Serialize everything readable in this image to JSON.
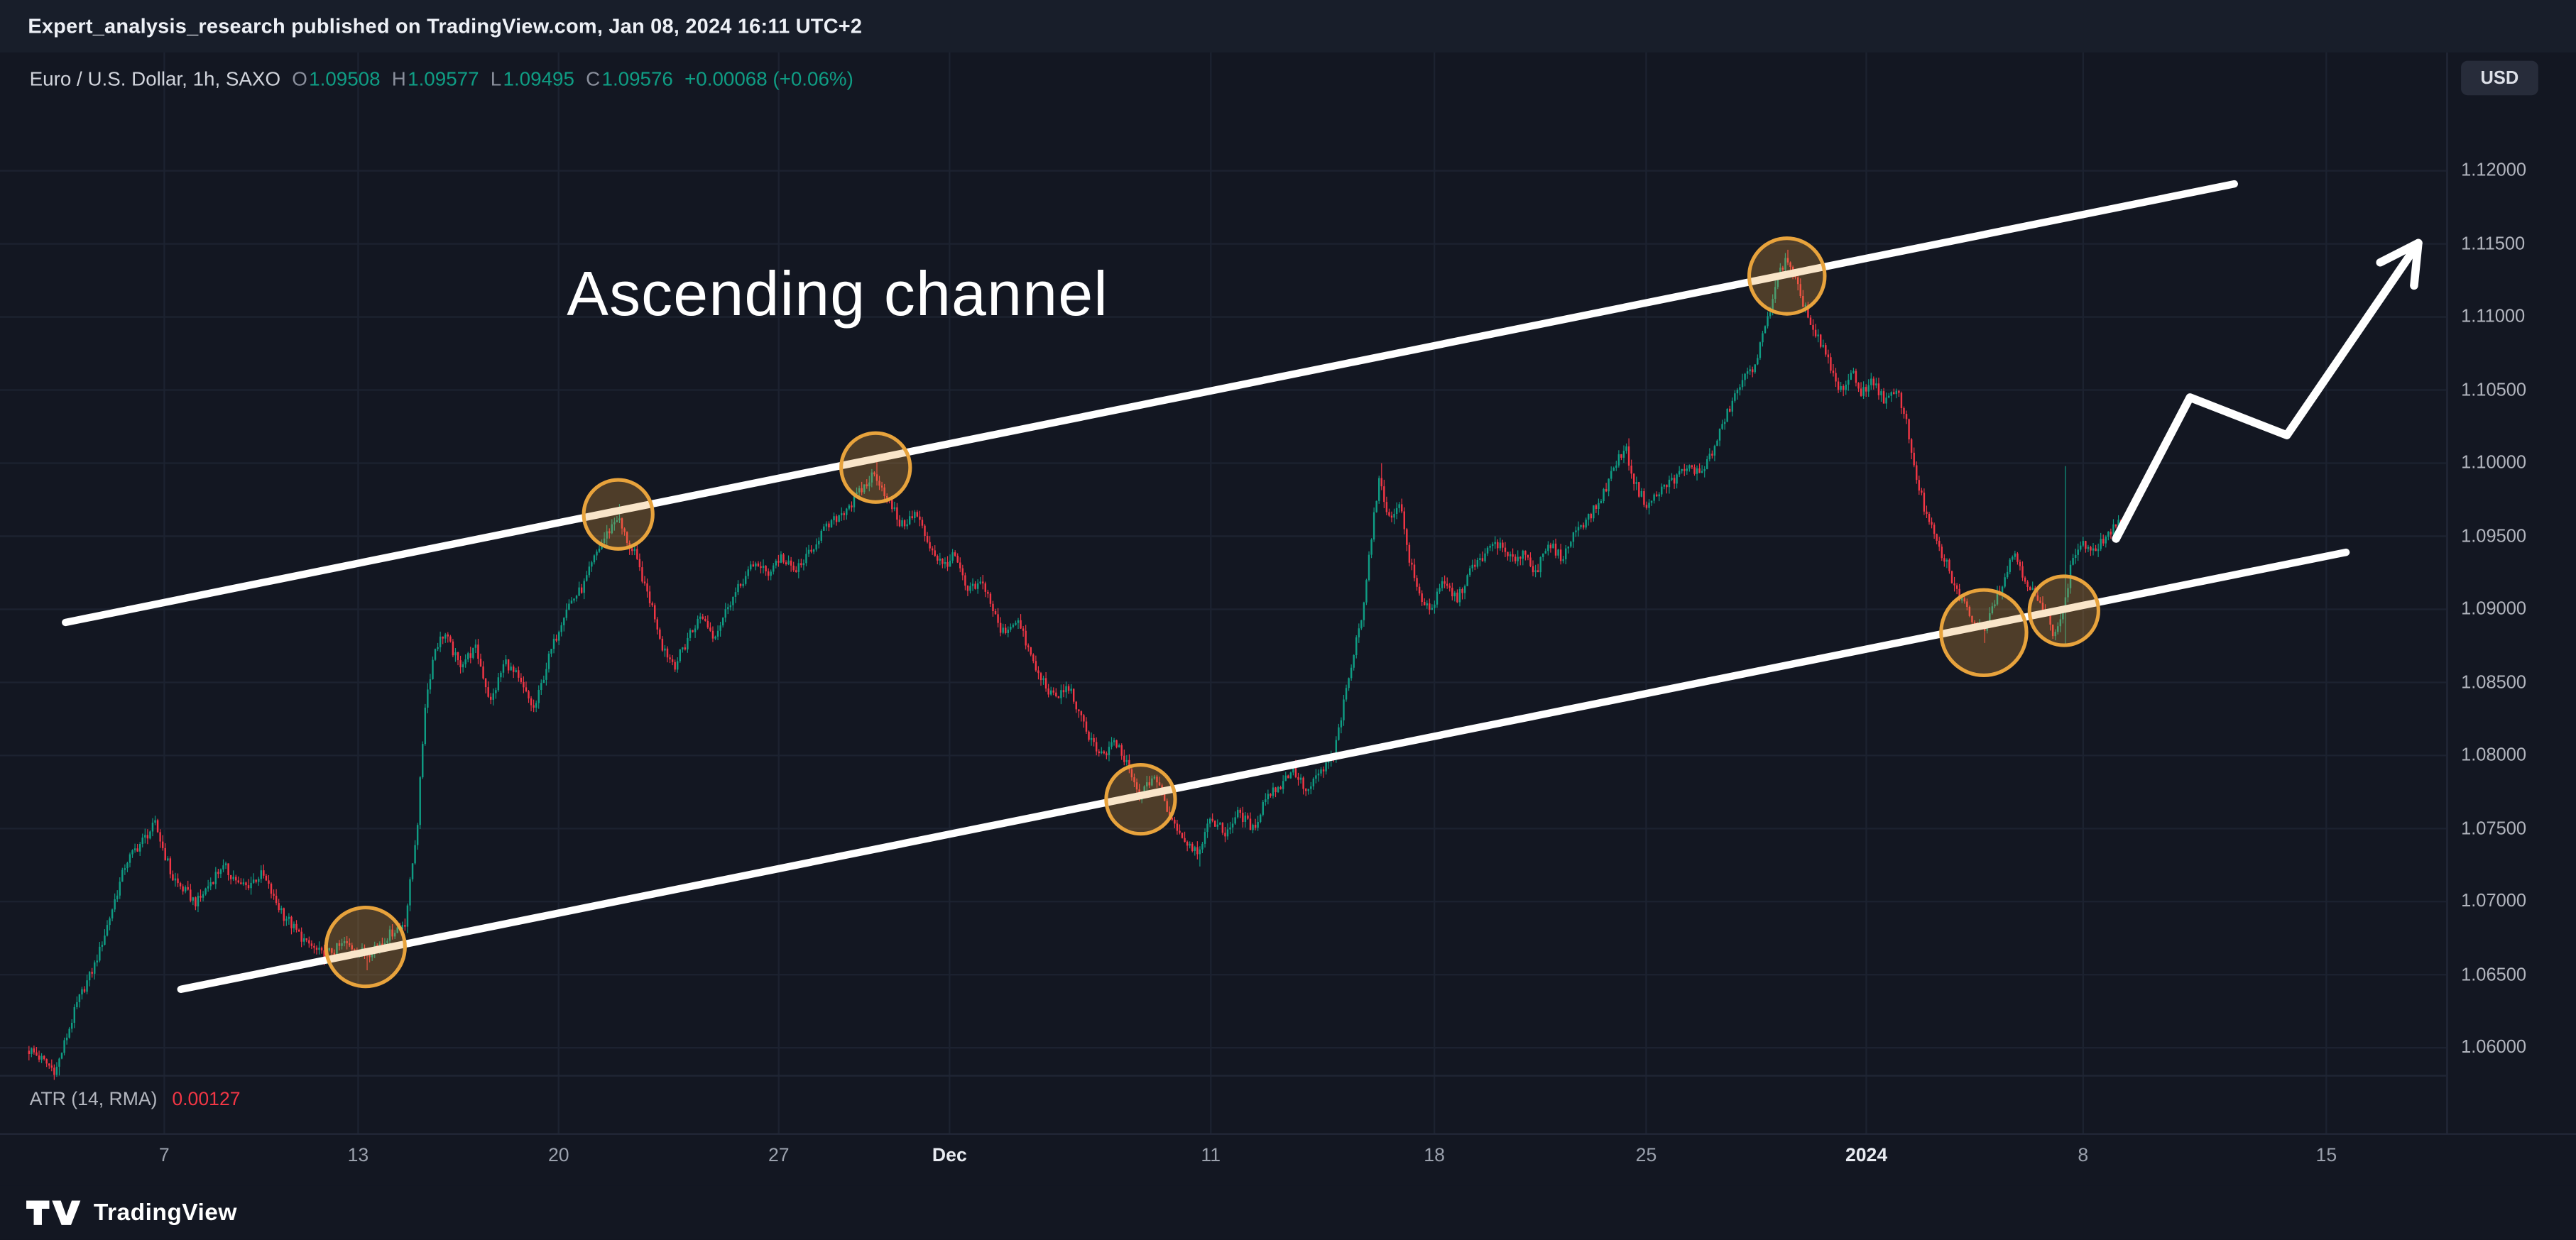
{
  "publish_bar": {
    "text": "Expert_analysis_research published on TradingView.com, Jan 08, 2024 16:11 UTC+2"
  },
  "legend": {
    "symbol": "Euro / U.S. Dollar, 1h, SAXO",
    "ohlc": [
      {
        "label": "O",
        "value": "1.09508"
      },
      {
        "label": "H",
        "value": "1.09577"
      },
      {
        "label": "L",
        "value": "1.09495"
      },
      {
        "label": "C",
        "value": "1.09576"
      }
    ],
    "change": "+0.00068 (+0.06%)"
  },
  "annotation": {
    "text": "Ascending channel"
  },
  "indicator": {
    "label": "ATR (14, RMA)",
    "value": "0.00127"
  },
  "price_axis": {
    "currency_button": "USD",
    "ticks": [
      {
        "label": "1.12000",
        "price": 1.12
      },
      {
        "label": "1.11500",
        "price": 1.115
      },
      {
        "label": "1.11000",
        "price": 1.11
      },
      {
        "label": "1.10500",
        "price": 1.105
      },
      {
        "label": "1.10000",
        "price": 1.1
      },
      {
        "label": "1.09500",
        "price": 1.095
      },
      {
        "label": "1.09000",
        "price": 1.09
      },
      {
        "label": "1.08500",
        "price": 1.085
      },
      {
        "label": "1.08000",
        "price": 1.08
      },
      {
        "label": "1.07500",
        "price": 1.075
      },
      {
        "label": "1.07000",
        "price": 1.07
      },
      {
        "label": "1.06500",
        "price": 1.065
      },
      {
        "label": "1.06000",
        "price": 1.06
      }
    ]
  },
  "time_axis": {
    "ticks": [
      {
        "label": "7",
        "t": 0.0622,
        "major": false
      },
      {
        "label": "13",
        "t": 0.142,
        "major": false
      },
      {
        "label": "20",
        "t": 0.2245,
        "major": false
      },
      {
        "label": "27",
        "t": 0.3151,
        "major": false
      },
      {
        "label": "Dec",
        "t": 0.3854,
        "major": true
      },
      {
        "label": "11",
        "t": 0.4929,
        "major": false
      },
      {
        "label": "18",
        "t": 0.5849,
        "major": false
      },
      {
        "label": "25",
        "t": 0.6721,
        "major": false
      },
      {
        "label": "2024",
        "t": 0.7627,
        "major": true
      },
      {
        "label": "8",
        "t": 0.8519,
        "major": false
      },
      {
        "label": "15",
        "t": 0.952,
        "major": false
      }
    ]
  },
  "footer": {
    "brand": "TradingView"
  },
  "colors": {
    "background": "#131722",
    "publish_bar_bg": "#181e2a",
    "grid": "#1c2230",
    "up": "#0f9d84",
    "down": "#f23645",
    "channel": "#ffffff",
    "circle_stroke": "#e8a33c",
    "circle_fill": "rgba(232,163,60,0.28)",
    "axis_text": "#b2b5be",
    "text": "#d1d4dc",
    "muted": "#787b86",
    "atr_value": "#f23645",
    "arrow": "#ffffff"
  },
  "chart_data": {
    "type": "candlestick",
    "title": "Euro / U.S. Dollar, 1h, SAXO",
    "timeframe": "1h",
    "current": {
      "open": 1.09508,
      "high": 1.09577,
      "low": 1.09495,
      "close": 1.09576,
      "change": "+0.00068",
      "change_pct": "+0.06%"
    },
    "y_ticks": [
      1.06,
      1.065,
      1.07,
      1.075,
      1.08,
      1.085,
      1.09,
      1.095,
      1.1,
      1.105,
      1.11,
      1.115,
      1.12
    ],
    "price_path": [
      [
        0.008,
        1.0598
      ],
      [
        0.018,
        1.0584
      ],
      [
        0.027,
        1.0631
      ],
      [
        0.035,
        1.066
      ],
      [
        0.047,
        1.0727
      ],
      [
        0.059,
        1.0753
      ],
      [
        0.066,
        1.0716
      ],
      [
        0.076,
        1.0699
      ],
      [
        0.086,
        1.0724
      ],
      [
        0.096,
        1.071
      ],
      [
        0.103,
        1.0719
      ],
      [
        0.111,
        1.0692
      ],
      [
        0.12,
        1.0674
      ],
      [
        0.128,
        1.0663
      ],
      [
        0.137,
        1.0671
      ],
      [
        0.145,
        1.0665
      ],
      [
        0.153,
        1.0674
      ],
      [
        0.162,
        1.0687
      ],
      [
        0.167,
        1.0755
      ],
      [
        0.17,
        1.0834
      ],
      [
        0.174,
        1.0873
      ],
      [
        0.178,
        1.0884
      ],
      [
        0.184,
        1.0862
      ],
      [
        0.191,
        1.0873
      ],
      [
        0.197,
        1.0836
      ],
      [
        0.203,
        1.0865
      ],
      [
        0.21,
        1.0847
      ],
      [
        0.215,
        1.0831
      ],
      [
        0.221,
        1.0867
      ],
      [
        0.228,
        1.0901
      ],
      [
        0.235,
        1.0915
      ],
      [
        0.241,
        1.094
      ],
      [
        0.246,
        1.0955
      ],
      [
        0.249,
        1.0963
      ],
      [
        0.254,
        1.0944
      ],
      [
        0.258,
        1.0929
      ],
      [
        0.264,
        1.0899
      ],
      [
        0.268,
        1.0873
      ],
      [
        0.273,
        1.0862
      ],
      [
        0.279,
        1.0884
      ],
      [
        0.284,
        1.0896
      ],
      [
        0.289,
        1.0881
      ],
      [
        0.295,
        1.0903
      ],
      [
        0.3,
        1.0917
      ],
      [
        0.306,
        1.0933
      ],
      [
        0.311,
        1.0924
      ],
      [
        0.316,
        1.0937
      ],
      [
        0.322,
        1.0926
      ],
      [
        0.327,
        1.0935
      ],
      [
        0.333,
        1.0952
      ],
      [
        0.338,
        1.096
      ],
      [
        0.343,
        1.0969
      ],
      [
        0.349,
        1.098
      ],
      [
        0.355,
        1.0994
      ],
      [
        0.361,
        1.0974
      ],
      [
        0.366,
        1.0957
      ],
      [
        0.372,
        1.0966
      ],
      [
        0.377,
        1.0946
      ],
      [
        0.383,
        1.0929
      ],
      [
        0.388,
        1.0937
      ],
      [
        0.393,
        1.0912
      ],
      [
        0.4,
        1.0918
      ],
      [
        0.407,
        1.0884
      ],
      [
        0.414,
        1.0892
      ],
      [
        0.422,
        1.0856
      ],
      [
        0.429,
        1.0839
      ],
      [
        0.435,
        1.0847
      ],
      [
        0.442,
        1.0817
      ],
      [
        0.449,
        1.0798
      ],
      [
        0.454,
        1.0809
      ],
      [
        0.46,
        1.0789
      ],
      [
        0.464,
        1.077
      ],
      [
        0.47,
        1.0787
      ],
      [
        0.476,
        1.0761
      ],
      [
        0.483,
        1.0741
      ],
      [
        0.488,
        1.0735
      ],
      [
        0.494,
        1.0757
      ],
      [
        0.499,
        1.0746
      ],
      [
        0.505,
        1.0761
      ],
      [
        0.511,
        1.0749
      ],
      [
        0.516,
        1.0772
      ],
      [
        0.522,
        1.078
      ],
      [
        0.527,
        1.0791
      ],
      [
        0.533,
        1.0775
      ],
      [
        0.538,
        1.0787
      ],
      [
        0.544,
        1.08
      ],
      [
        0.548,
        1.0834
      ],
      [
        0.552,
        1.0867
      ],
      [
        0.556,
        1.0901
      ],
      [
        0.56,
        1.0957
      ],
      [
        0.563,
        1.099
      ],
      [
        0.567,
        1.096
      ],
      [
        0.571,
        1.0975
      ],
      [
        0.575,
        1.0935
      ],
      [
        0.579,
        1.091
      ],
      [
        0.584,
        1.0899
      ],
      [
        0.589,
        1.0918
      ],
      [
        0.595,
        1.0907
      ],
      [
        0.6,
        1.0926
      ],
      [
        0.606,
        1.0937
      ],
      [
        0.611,
        1.0946
      ],
      [
        0.617,
        1.0933
      ],
      [
        0.622,
        1.094
      ],
      [
        0.627,
        1.0926
      ],
      [
        0.633,
        1.0944
      ],
      [
        0.638,
        1.0935
      ],
      [
        0.644,
        1.0955
      ],
      [
        0.649,
        1.0963
      ],
      [
        0.654,
        1.0975
      ],
      [
        0.66,
        1.1
      ],
      [
        0.664,
        1.1011
      ],
      [
        0.668,
        1.0985
      ],
      [
        0.673,
        1.0971
      ],
      [
        0.679,
        1.0982
      ],
      [
        0.684,
        1.0989
      ],
      [
        0.69,
        1.0997
      ],
      [
        0.695,
        1.0993
      ],
      [
        0.7,
        1.1008
      ],
      [
        0.706,
        1.1034
      ],
      [
        0.711,
        1.1053
      ],
      [
        0.717,
        1.1067
      ],
      [
        0.722,
        1.1094
      ],
      [
        0.726,
        1.1124
      ],
      [
        0.73,
        1.1139
      ],
      [
        0.734,
        1.1124
      ],
      [
        0.738,
        1.1106
      ],
      [
        0.742,
        1.1087
      ],
      [
        0.747,
        1.1072
      ],
      [
        0.752,
        1.1049
      ],
      [
        0.757,
        1.106
      ],
      [
        0.761,
        1.1049
      ],
      [
        0.766,
        1.1056
      ],
      [
        0.771,
        1.1042
      ],
      [
        0.776,
        1.1049
      ],
      [
        0.779,
        1.1034
      ],
      [
        0.783,
        1.0997
      ],
      [
        0.787,
        1.0969
      ],
      [
        0.792,
        1.0946
      ],
      [
        0.797,
        1.0926
      ],
      [
        0.801,
        1.091
      ],
      [
        0.806,
        1.0896
      ],
      [
        0.811,
        1.0885
      ],
      [
        0.815,
        1.0903
      ],
      [
        0.82,
        1.0921
      ],
      [
        0.824,
        1.094
      ],
      [
        0.828,
        1.0923
      ],
      [
        0.832,
        1.091
      ],
      [
        0.836,
        1.0899
      ],
      [
        0.84,
        1.0885
      ],
      [
        0.844,
        1.0896
      ],
      [
        0.848,
        1.0935
      ],
      [
        0.852,
        1.0946
      ],
      [
        0.856,
        1.0937
      ],
      [
        0.86,
        1.0946
      ],
      [
        0.863,
        1.0952
      ],
      [
        0.867,
        1.0958
      ]
    ],
    "wick_events": [
      {
        "t": 0.018,
        "low": 1.0581
      },
      {
        "t": 0.145,
        "low": 1.0653
      },
      {
        "t": 0.249,
        "high": 1.0972
      },
      {
        "t": 0.355,
        "high": 1.1004
      },
      {
        "t": 0.488,
        "low": 1.0724
      },
      {
        "t": 0.563,
        "high": 1.1
      },
      {
        "t": 0.664,
        "high": 1.1017
      },
      {
        "t": 0.73,
        "high": 1.1146
      },
      {
        "t": 0.811,
        "low": 1.0877
      },
      {
        "t": 0.844,
        "high": 1.0998,
        "low": 1.0875
      }
    ],
    "channel": {
      "upper": [
        [
          0.0216,
          1.0891
        ],
        [
          0.9141,
          1.1191
        ]
      ],
      "lower": [
        [
          0.069,
          1.064
        ],
        [
          0.9601,
          1.0939
        ]
      ]
    },
    "circles": [
      {
        "t": 0.145,
        "price": 1.0669,
        "r": 24
      },
      {
        "t": 0.249,
        "price": 1.0965,
        "r": 21
      },
      {
        "t": 0.355,
        "price": 1.0997,
        "r": 21
      },
      {
        "t": 0.464,
        "price": 1.077,
        "r": 21
      },
      {
        "t": 0.73,
        "price": 1.1128,
        "r": 23
      },
      {
        "t": 0.811,
        "price": 1.0884,
        "r": 26
      },
      {
        "t": 0.844,
        "price": 1.0899,
        "r": 21
      }
    ],
    "arrow_points": [
      [
        1288,
        296
      ],
      [
        1333,
        210
      ],
      [
        1392,
        233
      ],
      [
        1472,
        116
      ]
    ]
  }
}
